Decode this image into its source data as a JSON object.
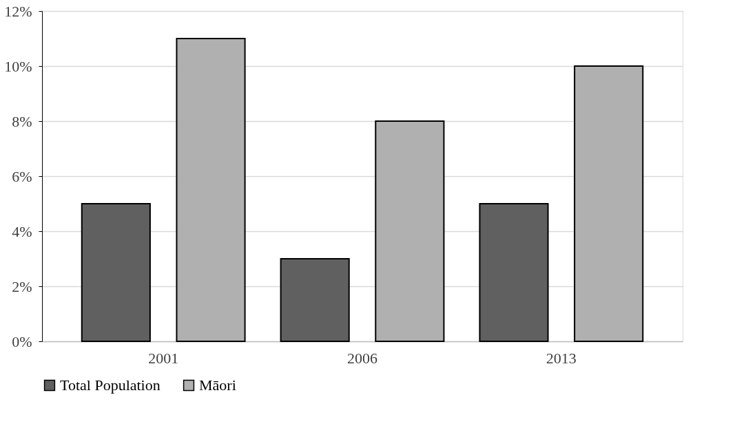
{
  "chart_data": {
    "type": "bar",
    "categories": [
      "2001",
      "2006",
      "2013"
    ],
    "series": [
      {
        "name": "Total Population",
        "color": "#606060",
        "values": [
          5,
          3,
          5
        ]
      },
      {
        "name": "Māori",
        "color": "#b0b0b0",
        "values": [
          11,
          8,
          10
        ]
      }
    ],
    "ylim": [
      0,
      12
    ],
    "yticks": [
      {
        "value": 0,
        "label": "0%"
      },
      {
        "value": 2,
        "label": "2%"
      },
      {
        "value": 4,
        "label": "4%"
      },
      {
        "value": 6,
        "label": "6%"
      },
      {
        "value": 8,
        "label": "8%"
      },
      {
        "value": 10,
        "label": "10%"
      },
      {
        "value": 12,
        "label": "12%"
      }
    ],
    "grid": "y",
    "legend": "bottom"
  }
}
